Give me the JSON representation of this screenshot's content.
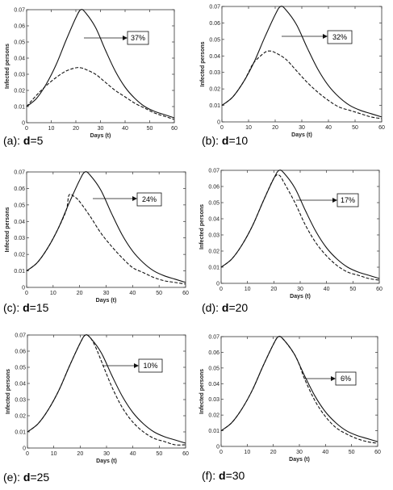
{
  "chart_data": [
    {
      "type": "line",
      "panel_label": "(a): ",
      "param": "d",
      "param_value": "=5",
      "xlabel": "Days (t)",
      "ylabel": "Infected persons",
      "xlim": [
        0,
        60
      ],
      "ylim": [
        0,
        0.07
      ],
      "xticks": [
        "0",
        "10",
        "20",
        "30",
        "40",
        "50",
        "60"
      ],
      "yticks": [
        "0",
        "0.01",
        "0.02",
        "0.03",
        "0.04",
        "0.05",
        "0.06",
        "0.07"
      ],
      "annotation": "37%",
      "series": [
        {
          "style": "solid",
          "x": [
            0,
            4,
            8,
            12,
            16,
            20,
            22,
            24,
            28,
            32,
            36,
            40,
            44,
            48,
            52,
            56,
            60
          ],
          "y": [
            0.01,
            0.015,
            0.024,
            0.036,
            0.051,
            0.065,
            0.07,
            0.068,
            0.059,
            0.045,
            0.032,
            0.022,
            0.015,
            0.01,
            0.007,
            0.005,
            0.003
          ]
        },
        {
          "style": "dashed",
          "x": [
            0,
            4,
            8,
            12,
            16,
            20,
            22,
            24,
            28,
            32,
            36,
            40,
            44,
            48,
            52,
            56,
            60
          ],
          "y": [
            0.01,
            0.017,
            0.023,
            0.028,
            0.032,
            0.034,
            0.034,
            0.033,
            0.03,
            0.025,
            0.02,
            0.016,
            0.012,
            0.009,
            0.006,
            0.004,
            0.002
          ]
        }
      ]
    },
    {
      "type": "line",
      "panel_label": "(b): ",
      "param": "d",
      "param_value": "=10",
      "xlabel": "Days (t)",
      "ylabel": "Infected persons",
      "xlim": [
        0,
        60
      ],
      "ylim": [
        0,
        0.07
      ],
      "xticks": [
        "0",
        "10",
        "20",
        "30",
        "40",
        "50",
        "60"
      ],
      "yticks": [
        "0",
        "0.01",
        "0.02",
        "0.03",
        "0.04",
        "0.05",
        "0.06",
        "0.07"
      ],
      "annotation": "32%",
      "series": [
        {
          "style": "solid",
          "x": [
            0,
            4,
            8,
            12,
            16,
            20,
            22,
            24,
            28,
            32,
            36,
            40,
            44,
            48,
            52,
            56,
            60
          ],
          "y": [
            0.01,
            0.015,
            0.024,
            0.036,
            0.051,
            0.065,
            0.07,
            0.068,
            0.059,
            0.045,
            0.032,
            0.022,
            0.015,
            0.01,
            0.007,
            0.005,
            0.003
          ]
        },
        {
          "style": "dashed",
          "x": [
            0,
            4,
            8,
            10,
            12,
            16,
            18,
            20,
            24,
            28,
            32,
            36,
            40,
            44,
            48,
            52,
            56,
            60
          ],
          "y": [
            0.01,
            0.015,
            0.024,
            0.03,
            0.036,
            0.042,
            0.043,
            0.042,
            0.038,
            0.031,
            0.024,
            0.018,
            0.013,
            0.009,
            0.007,
            0.005,
            0.003,
            0.002
          ]
        }
      ]
    },
    {
      "type": "line",
      "panel_label": "(c): ",
      "param": "d",
      "param_value": "=15",
      "xlabel": "Days (t)",
      "ylabel": "Infected persons",
      "xlim": [
        0,
        60
      ],
      "ylim": [
        0,
        0.07
      ],
      "xticks": [
        "0",
        "10",
        "20",
        "30",
        "40",
        "50",
        "60"
      ],
      "yticks": [
        "0",
        "0.01",
        "0.02",
        "0.03",
        "0.04",
        "0.05",
        "0.06",
        "0.07"
      ],
      "annotation": "24%",
      "series": [
        {
          "style": "solid",
          "x": [
            0,
            4,
            8,
            12,
            16,
            20,
            22,
            24,
            28,
            32,
            36,
            40,
            44,
            48,
            52,
            56,
            60
          ],
          "y": [
            0.01,
            0.015,
            0.024,
            0.036,
            0.051,
            0.065,
            0.07,
            0.068,
            0.059,
            0.045,
            0.032,
            0.022,
            0.015,
            0.01,
            0.007,
            0.005,
            0.003
          ]
        },
        {
          "style": "dashed",
          "x": [
            0,
            4,
            8,
            12,
            15,
            16,
            18,
            20,
            24,
            28,
            32,
            36,
            40,
            44,
            48,
            52,
            56,
            60
          ],
          "y": [
            0.01,
            0.015,
            0.024,
            0.036,
            0.047,
            0.056,
            0.055,
            0.052,
            0.043,
            0.033,
            0.025,
            0.018,
            0.012,
            0.009,
            0.006,
            0.004,
            0.003,
            0.002
          ]
        }
      ]
    },
    {
      "type": "line",
      "panel_label": "(d): ",
      "param": "d",
      "param_value": "=20",
      "xlabel": "Days (t)",
      "ylabel": "Infected persons",
      "xlim": [
        0,
        60
      ],
      "ylim": [
        0,
        0.07
      ],
      "xticks": [
        "0",
        "10",
        "20",
        "30",
        "40",
        "50",
        "60"
      ],
      "yticks": [
        "0",
        "0.01",
        "0.02",
        "0.03",
        "0.04",
        "0.05",
        "0.06",
        "0.07"
      ],
      "annotation": "17%",
      "series": [
        {
          "style": "solid",
          "x": [
            0,
            4,
            8,
            12,
            16,
            20,
            22,
            24,
            28,
            32,
            36,
            40,
            44,
            48,
            52,
            56,
            60
          ],
          "y": [
            0.01,
            0.015,
            0.024,
            0.036,
            0.051,
            0.065,
            0.07,
            0.068,
            0.059,
            0.045,
            0.032,
            0.022,
            0.015,
            0.01,
            0.007,
            0.005,
            0.003
          ]
        },
        {
          "style": "dashed",
          "x": [
            0,
            4,
            8,
            12,
            16,
            20,
            22,
            24,
            28,
            32,
            36,
            40,
            44,
            48,
            52,
            56,
            60
          ],
          "y": [
            0.01,
            0.015,
            0.024,
            0.036,
            0.051,
            0.065,
            0.067,
            0.062,
            0.05,
            0.036,
            0.025,
            0.017,
            0.011,
            0.007,
            0.005,
            0.003,
            0.002
          ]
        }
      ]
    },
    {
      "type": "line",
      "panel_label": "(e): ",
      "param": "d",
      "param_value": "=25",
      "xlabel": "Days (t)",
      "ylabel": "Infected persons",
      "xlim": [
        0,
        60
      ],
      "ylim": [
        0,
        0.07
      ],
      "xticks": [
        "0",
        "10",
        "20",
        "30",
        "40",
        "50",
        "60"
      ],
      "yticks": [
        "0",
        "0.01",
        "0.02",
        "0.03",
        "0.04",
        "0.05",
        "0.06",
        "0.07"
      ],
      "annotation": "10%",
      "series": [
        {
          "style": "solid",
          "x": [
            0,
            4,
            8,
            12,
            16,
            20,
            22,
            24,
            28,
            32,
            36,
            40,
            44,
            48,
            52,
            56,
            60
          ],
          "y": [
            0.01,
            0.015,
            0.024,
            0.036,
            0.051,
            0.065,
            0.07,
            0.068,
            0.059,
            0.045,
            0.032,
            0.022,
            0.015,
            0.01,
            0.007,
            0.005,
            0.003
          ]
        },
        {
          "style": "dashed",
          "x": [
            0,
            4,
            8,
            12,
            16,
            20,
            22,
            24,
            26,
            28,
            32,
            36,
            40,
            44,
            48,
            52,
            56,
            60
          ],
          "y": [
            0.01,
            0.015,
            0.024,
            0.036,
            0.051,
            0.065,
            0.07,
            0.068,
            0.062,
            0.054,
            0.038,
            0.025,
            0.016,
            0.01,
            0.006,
            0.004,
            0.002,
            0.002
          ]
        }
      ]
    },
    {
      "type": "line",
      "panel_label": "(f): ",
      "param": "d",
      "param_value": "=30",
      "xlabel": "Days (t)",
      "ylabel": "Infected persons",
      "xlim": [
        0,
        60
      ],
      "ylim": [
        0,
        0.07
      ],
      "xticks": [
        "0",
        "10",
        "20",
        "30",
        "40",
        "50",
        "60"
      ],
      "yticks": [
        "0",
        "0.01",
        "0.02",
        "0.03",
        "0.04",
        "0.05",
        "0.06",
        "0.07"
      ],
      "annotation": "6%",
      "series": [
        {
          "style": "solid",
          "x": [
            0,
            4,
            8,
            12,
            16,
            20,
            22,
            24,
            28,
            32,
            36,
            40,
            44,
            48,
            52,
            56,
            60
          ],
          "y": [
            0.01,
            0.015,
            0.024,
            0.036,
            0.051,
            0.065,
            0.07,
            0.068,
            0.059,
            0.045,
            0.032,
            0.022,
            0.015,
            0.01,
            0.007,
            0.005,
            0.003
          ]
        },
        {
          "style": "dashed",
          "x": [
            0,
            4,
            8,
            12,
            16,
            20,
            22,
            24,
            28,
            30,
            32,
            36,
            40,
            44,
            48,
            52,
            56,
            60
          ],
          "y": [
            0.01,
            0.015,
            0.024,
            0.036,
            0.051,
            0.065,
            0.07,
            0.068,
            0.059,
            0.052,
            0.043,
            0.029,
            0.019,
            0.012,
            0.008,
            0.005,
            0.003,
            0.002
          ]
        }
      ]
    }
  ]
}
